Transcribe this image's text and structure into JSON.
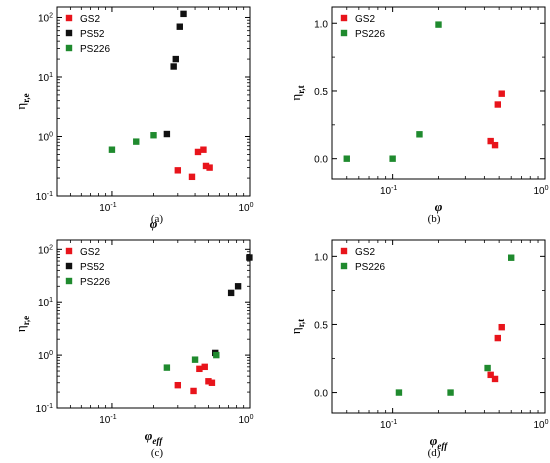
{
  "colors": {
    "GS2": "#e8141b",
    "PS52": "#111111",
    "PS226": "#1f8a2e",
    "axis": "#000000"
  },
  "chart_data": [
    {
      "type": "scatter",
      "caption": "(a)",
      "xlabel": "φ",
      "ylabel": "η",
      "ylabel_sub": "r,e",
      "xscale": "log",
      "yscale": "log",
      "xlim": [
        0.04,
        1
      ],
      "ylim": [
        0.1,
        150
      ],
      "xticks": [
        {
          "v": 0.1,
          "label": "10",
          "sup": "-1"
        },
        {
          "v": 1,
          "label": "10",
          "sup": "0"
        }
      ],
      "yticks": [
        {
          "v": 0.1,
          "label": "10",
          "sup": "-1"
        },
        {
          "v": 1,
          "label": "10",
          "sup": "0"
        },
        {
          "v": 10,
          "label": "10",
          "sup": "1"
        },
        {
          "v": 100,
          "label": "10",
          "sup": "2"
        }
      ],
      "grid": false,
      "legend_position": "top-left",
      "series": [
        {
          "name": "GS2",
          "color_key": "GS2",
          "points": [
            [
              0.3,
              0.27
            ],
            [
              0.38,
              0.21
            ],
            [
              0.42,
              0.55
            ],
            [
              0.46,
              0.6
            ],
            [
              0.48,
              0.32
            ],
            [
              0.51,
              0.3
            ]
          ]
        },
        {
          "name": "PS52",
          "color_key": "PS52",
          "points": [
            [
              0.25,
              1.1
            ],
            [
              0.28,
              15
            ],
            [
              0.29,
              20
            ],
            [
              0.31,
              70
            ],
            [
              0.33,
              115
            ]
          ]
        },
        {
          "name": "PS226",
          "color_key": "PS226",
          "points": [
            [
              0.1,
              0.6
            ],
            [
              0.15,
              0.82
            ],
            [
              0.2,
              1.05
            ]
          ]
        }
      ]
    },
    {
      "type": "scatter",
      "caption": "(b)",
      "xlabel": "φ",
      "ylabel": "η",
      "ylabel_sub": "r,t",
      "xscale": "log",
      "yscale": "linear",
      "xlim": [
        0.04,
        1
      ],
      "ylim": [
        -0.15,
        1.12
      ],
      "xticks": [
        {
          "v": 0.1,
          "label": "10",
          "sup": "-1"
        },
        {
          "v": 1,
          "label": "10",
          "sup": "0"
        }
      ],
      "yticks": [
        {
          "v": 0,
          "label": "0.0"
        },
        {
          "v": 0.5,
          "label": "0.5"
        },
        {
          "v": 1,
          "label": "1.0"
        }
      ],
      "grid": false,
      "legend_position": "top-left",
      "series": [
        {
          "name": "GS2",
          "color_key": "GS2",
          "points": [
            [
              0.44,
              0.13
            ],
            [
              0.47,
              0.1
            ],
            [
              0.49,
              0.4
            ],
            [
              0.52,
              0.48
            ]
          ]
        },
        {
          "name": "PS226",
          "color_key": "PS226",
          "points": [
            [
              0.05,
              0.0
            ],
            [
              0.1,
              0.0
            ],
            [
              0.15,
              0.18
            ],
            [
              0.2,
              0.99
            ]
          ]
        }
      ]
    },
    {
      "type": "scatter",
      "caption": "(c)",
      "xlabel": "φ",
      "xlabel_sub": "eff",
      "ylabel": "η",
      "ylabel_sub": "r,e",
      "xscale": "log",
      "yscale": "log",
      "xlim": [
        0.04,
        1
      ],
      "ylim": [
        0.1,
        150
      ],
      "xticks": [
        {
          "v": 0.1,
          "label": "10",
          "sup": "-1"
        },
        {
          "v": 1,
          "label": "10",
          "sup": "0"
        }
      ],
      "yticks": [
        {
          "v": 0.1,
          "label": "10",
          "sup": "-1"
        },
        {
          "v": 1,
          "label": "10",
          "sup": "0"
        },
        {
          "v": 10,
          "label": "10",
          "sup": "1"
        },
        {
          "v": 100,
          "label": "10",
          "sup": "2"
        }
      ],
      "grid": false,
      "legend_position": "top-left",
      "series": [
        {
          "name": "GS2",
          "color_key": "GS2",
          "points": [
            [
              0.3,
              0.27
            ],
            [
              0.39,
              0.21
            ],
            [
              0.43,
              0.55
            ],
            [
              0.47,
              0.6
            ],
            [
              0.5,
              0.32
            ],
            [
              0.53,
              0.3
            ]
          ]
        },
        {
          "name": "PS52",
          "color_key": "PS52",
          "points": [
            [
              0.56,
              1.1
            ],
            [
              0.73,
              15
            ],
            [
              0.82,
              20
            ],
            [
              0.99,
              70
            ]
          ]
        },
        {
          "name": "PS226",
          "color_key": "PS226",
          "points": [
            [
              0.25,
              0.58
            ],
            [
              0.4,
              0.82
            ],
            [
              0.57,
              1.0
            ]
          ]
        }
      ]
    },
    {
      "type": "scatter",
      "caption": "(d)",
      "xlabel": "φ",
      "xlabel_sub": "eff",
      "ylabel": "η",
      "ylabel_sub": "r,t",
      "xscale": "log",
      "yscale": "linear",
      "xlim": [
        0.04,
        1
      ],
      "ylim": [
        -0.15,
        1.12
      ],
      "xticks": [
        {
          "v": 0.1,
          "label": "10",
          "sup": "-1"
        },
        {
          "v": 1,
          "label": "10",
          "sup": "0"
        }
      ],
      "yticks": [
        {
          "v": 0,
          "label": "0.0"
        },
        {
          "v": 0.5,
          "label": "0.5"
        },
        {
          "v": 1,
          "label": "1.0"
        }
      ],
      "grid": false,
      "legend_position": "top-left",
      "series": [
        {
          "name": "GS2",
          "color_key": "GS2",
          "points": [
            [
              0.44,
              0.13
            ],
            [
              0.47,
              0.1
            ],
            [
              0.49,
              0.4
            ],
            [
              0.52,
              0.48
            ]
          ]
        },
        {
          "name": "PS226",
          "color_key": "PS226",
          "points": [
            [
              0.11,
              0.0
            ],
            [
              0.24,
              0.0
            ],
            [
              0.42,
              0.18
            ],
            [
              0.6,
              0.99
            ]
          ]
        }
      ]
    }
  ]
}
